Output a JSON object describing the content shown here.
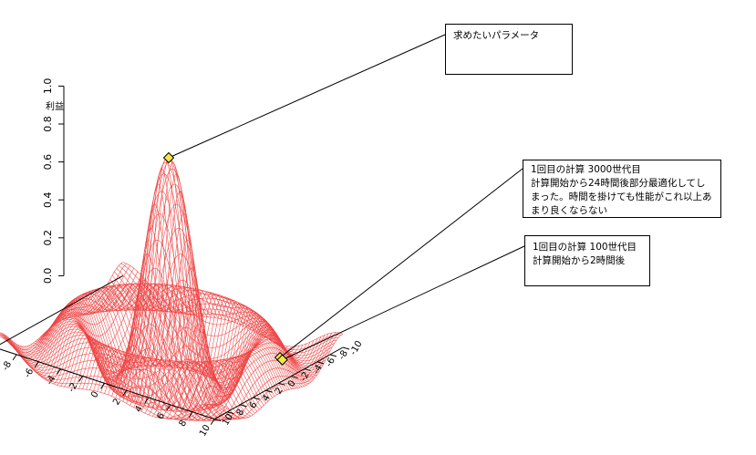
{
  "chart_data": {
    "type": "surface",
    "zlabel": "利益",
    "x_ticks": [
      "-10",
      "-8",
      "-6",
      "-4",
      "-2",
      "0",
      "2",
      "4",
      "6",
      "8",
      "10"
    ],
    "y_ticks": [
      "-10",
      "-8",
      "-6",
      "-4",
      "-2",
      "0",
      "2",
      "4",
      "6",
      "8",
      "10"
    ],
    "z_ticks": [
      "0.0",
      "0.2",
      "0.4",
      "0.6",
      "0.8",
      "1.0"
    ],
    "zlim": [
      0,
      1.0
    ],
    "xlim": [
      -10,
      10
    ],
    "ylim": [
      -10,
      10
    ],
    "surface_color": "#ee4444",
    "marker_color": "#f5e642",
    "markers": [
      {
        "name": "optimum",
        "x": 0,
        "y": 0,
        "z": 1.0
      },
      {
        "name": "gen3000",
        "x": 8.6,
        "y": 2.6,
        "z": 0.06
      },
      {
        "name": "gen100",
        "x": 8.0,
        "y": 4.0,
        "z": 0.01
      }
    ]
  },
  "callouts": {
    "param": "求めたいパラメータ",
    "gen3000": "1回目の計算 3000世代目\n計算開始から24時間後部分最適化してしまった。時間を掛けても性能がこれ以上あまり良くならない",
    "gen100": "1回目の計算 100世代目\n計算開始から2時間後"
  }
}
